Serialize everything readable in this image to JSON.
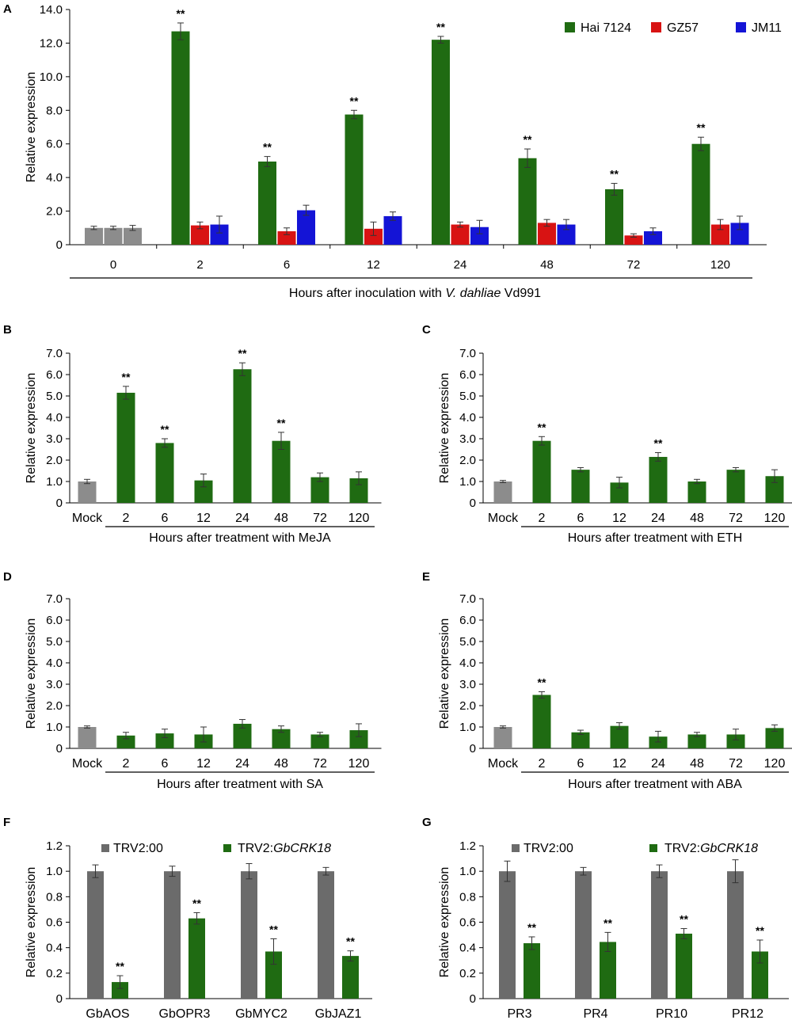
{
  "chart_data": [
    {
      "id": "A",
      "type": "bar",
      "panel_label": "A",
      "ylabel": "Relative expression",
      "xlabel_parts": [
        "Hours after inoculation with ",
        "V. dahliae",
        " Vd991"
      ],
      "ylim": [
        0,
        14
      ],
      "ytick_labels": [
        "0",
        "2.0",
        "4.0",
        "6.0",
        "8.0",
        "10.0",
        "12.0",
        "14.0"
      ],
      "categories": [
        "0",
        "2",
        "6",
        "12",
        "24",
        "48",
        "72",
        "120"
      ],
      "series": [
        {
          "name": "Hai 7124",
          "color": "#1f6b12",
          "values": [
            1.0,
            12.7,
            4.95,
            7.75,
            12.2,
            5.15,
            3.3,
            6.0
          ],
          "errors": [
            0.1,
            0.5,
            0.3,
            0.25,
            0.2,
            0.55,
            0.35,
            0.4
          ]
        },
        {
          "name": "GZ57",
          "color": "#d81313",
          "values": [
            1.0,
            1.15,
            0.8,
            0.95,
            1.2,
            1.3,
            0.55,
            1.2
          ],
          "errors": [
            0.1,
            0.2,
            0.2,
            0.4,
            0.15,
            0.2,
            0.1,
            0.3
          ]
        },
        {
          "name": "JM11",
          "color": "#1414d6",
          "values": [
            1.0,
            1.2,
            2.05,
            1.7,
            1.05,
            1.2,
            0.8,
            1.3
          ],
          "errors": [
            0.15,
            0.5,
            0.3,
            0.25,
            0.4,
            0.3,
            0.2,
            0.4
          ]
        }
      ],
      "control_color": "#8c8c8c",
      "significance": [
        {
          "series": 0,
          "index": 1,
          "label": "**"
        },
        {
          "series": 0,
          "index": 2,
          "label": "**"
        },
        {
          "series": 0,
          "index": 3,
          "label": "**"
        },
        {
          "series": 0,
          "index": 4,
          "label": "**"
        },
        {
          "series": 0,
          "index": 5,
          "label": "**"
        },
        {
          "series": 0,
          "index": 6,
          "label": "**"
        },
        {
          "series": 0,
          "index": 7,
          "label": "**"
        }
      ]
    },
    {
      "id": "B",
      "type": "bar",
      "panel_label": "B",
      "ylabel": "Relative expression",
      "xlabel": "Hours after treatment with MeJA",
      "ylim": [
        0,
        7
      ],
      "ytick_labels": [
        "0",
        "1.0",
        "2.0",
        "3.0",
        "4.0",
        "5.0",
        "6.0",
        "7.0"
      ],
      "categories": [
        "Mock",
        "2",
        "6",
        "12",
        "24",
        "48",
        "72",
        "120"
      ],
      "values": [
        1.0,
        5.15,
        2.8,
        1.05,
        6.25,
        2.9,
        1.2,
        1.15
      ],
      "errors": [
        0.1,
        0.3,
        0.2,
        0.3,
        0.3,
        0.4,
        0.2,
        0.3
      ],
      "colors": [
        "#8c8c8c",
        "#1f6b12",
        "#1f6b12",
        "#1f6b12",
        "#1f6b12",
        "#1f6b12",
        "#1f6b12",
        "#1f6b12"
      ],
      "significance": [
        {
          "index": 1,
          "label": "**"
        },
        {
          "index": 2,
          "label": "**"
        },
        {
          "index": 4,
          "label": "**"
        },
        {
          "index": 5,
          "label": "**"
        }
      ]
    },
    {
      "id": "C",
      "type": "bar",
      "panel_label": "C",
      "ylabel": "Relative expression",
      "xlabel": "Hours after treatment with ETH",
      "ylim": [
        0,
        7
      ],
      "ytick_labels": [
        "0",
        "1.0",
        "2.0",
        "3.0",
        "4.0",
        "5.0",
        "6.0",
        "7.0"
      ],
      "categories": [
        "Mock",
        "2",
        "6",
        "12",
        "24",
        "48",
        "72",
        "120"
      ],
      "values": [
        1.0,
        2.9,
        1.55,
        0.95,
        2.15,
        1.0,
        1.55,
        1.25
      ],
      "errors": [
        0.05,
        0.2,
        0.1,
        0.25,
        0.2,
        0.1,
        0.1,
        0.3
      ],
      "colors": [
        "#8c8c8c",
        "#1f6b12",
        "#1f6b12",
        "#1f6b12",
        "#1f6b12",
        "#1f6b12",
        "#1f6b12",
        "#1f6b12"
      ],
      "significance": [
        {
          "index": 1,
          "label": "**"
        },
        {
          "index": 4,
          "label": "**"
        }
      ]
    },
    {
      "id": "D",
      "type": "bar",
      "panel_label": "D",
      "ylabel": "Relative expression",
      "xlabel": "Hours after treatment with SA",
      "ylim": [
        0,
        7
      ],
      "ytick_labels": [
        "0",
        "1.0",
        "2.0",
        "3.0",
        "4.0",
        "5.0",
        "6.0",
        "7.0"
      ],
      "categories": [
        "Mock",
        "2",
        "6",
        "12",
        "24",
        "48",
        "72",
        "120"
      ],
      "values": [
        1.0,
        0.6,
        0.7,
        0.65,
        1.15,
        0.9,
        0.65,
        0.85
      ],
      "errors": [
        0.05,
        0.15,
        0.2,
        0.35,
        0.2,
        0.15,
        0.1,
        0.3
      ],
      "colors": [
        "#8c8c8c",
        "#1f6b12",
        "#1f6b12",
        "#1f6b12",
        "#1f6b12",
        "#1f6b12",
        "#1f6b12",
        "#1f6b12"
      ],
      "significance": []
    },
    {
      "id": "E",
      "type": "bar",
      "panel_label": "E",
      "ylabel": "Relative expression",
      "xlabel": "Hours after treatment with ABA",
      "ylim": [
        0,
        7
      ],
      "ytick_labels": [
        "0",
        "1.0",
        "2.0",
        "3.0",
        "4.0",
        "5.0",
        "6.0",
        "7.0"
      ],
      "categories": [
        "Mock",
        "2",
        "6",
        "12",
        "24",
        "48",
        "72",
        "120"
      ],
      "values": [
        1.0,
        2.5,
        0.75,
        1.05,
        0.55,
        0.65,
        0.65,
        0.95
      ],
      "errors": [
        0.05,
        0.15,
        0.1,
        0.15,
        0.25,
        0.1,
        0.25,
        0.15
      ],
      "colors": [
        "#8c8c8c",
        "#1f6b12",
        "#1f6b12",
        "#1f6b12",
        "#1f6b12",
        "#1f6b12",
        "#1f6b12",
        "#1f6b12"
      ],
      "significance": [
        {
          "index": 1,
          "label": "**"
        }
      ]
    },
    {
      "id": "F",
      "type": "bar",
      "panel_label": "F",
      "ylabel": "Relative expression",
      "ylim": [
        0,
        1.2
      ],
      "ytick_labels": [
        "0",
        "0.2",
        "0.4",
        "0.6",
        "0.8",
        "1.0",
        "1.2"
      ],
      "categories": [
        "GbAOS",
        "GbOPR3",
        "GbMYC2",
        "GbJAZ1"
      ],
      "series": [
        {
          "name": "TRV2:00",
          "legend_parts": [
            "TRV2:00"
          ],
          "color": "#6b6b6b",
          "values": [
            1.0,
            1.0,
            1.0,
            1.0
          ],
          "errors": [
            0.05,
            0.04,
            0.06,
            0.03
          ]
        },
        {
          "name": "TRV2:GbCRK18",
          "legend_parts": [
            "TRV2:",
            "GbCRK18"
          ],
          "color": "#1f6b12",
          "values": [
            0.13,
            0.63,
            0.37,
            0.335
          ],
          "errors": [
            0.05,
            0.045,
            0.1,
            0.04
          ]
        }
      ],
      "significance": [
        {
          "series": 1,
          "index": 0,
          "label": "**"
        },
        {
          "series": 1,
          "index": 1,
          "label": "**"
        },
        {
          "series": 1,
          "index": 2,
          "label": "**"
        },
        {
          "series": 1,
          "index": 3,
          "label": "**"
        }
      ]
    },
    {
      "id": "G",
      "type": "bar",
      "panel_label": "G",
      "ylabel": "Relative expression",
      "ylim": [
        0,
        1.2
      ],
      "ytick_labels": [
        "0",
        "0.2",
        "0.4",
        "0.6",
        "0.8",
        "1.0",
        "1.2"
      ],
      "categories": [
        "PR3",
        "PR4",
        "PR10",
        "PR12"
      ],
      "series": [
        {
          "name": "TRV2:00",
          "legend_parts": [
            "TRV2:00"
          ],
          "color": "#6b6b6b",
          "values": [
            1.0,
            1.0,
            1.0,
            1.0
          ],
          "errors": [
            0.08,
            0.03,
            0.05,
            0.09
          ]
        },
        {
          "name": "TRV2:GbCRK18",
          "legend_parts": [
            "TRV2:",
            "GbCRK18"
          ],
          "color": "#1f6b12",
          "values": [
            0.435,
            0.445,
            0.51,
            0.37
          ],
          "errors": [
            0.05,
            0.075,
            0.04,
            0.09
          ]
        }
      ],
      "significance": [
        {
          "series": 1,
          "index": 0,
          "label": "**"
        },
        {
          "series": 1,
          "index": 1,
          "label": "**"
        },
        {
          "series": 1,
          "index": 2,
          "label": "**"
        },
        {
          "series": 1,
          "index": 3,
          "label": "**"
        }
      ]
    }
  ]
}
